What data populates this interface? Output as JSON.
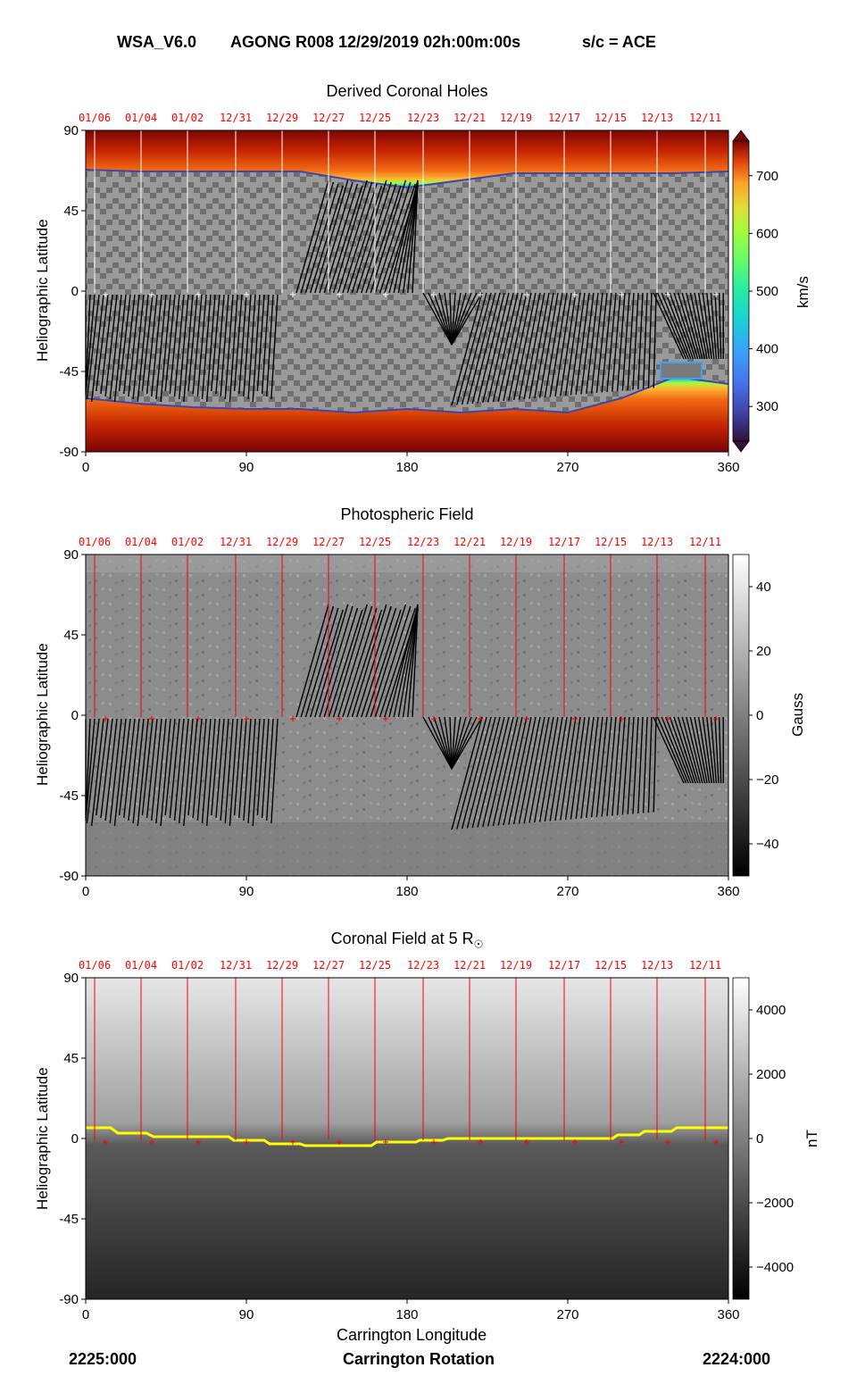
{
  "header": {
    "model": "WSA_V6.0",
    "run": "AGONG R008 12/29/2019 02h:00m:00s",
    "spacecraft": "s/c = ACE"
  },
  "footer": {
    "left": "2225:000",
    "center": "Carrington Rotation",
    "right": "2224:000"
  },
  "date_labels": [
    "01/06",
    "01/04",
    "01/02",
    "12/31",
    "12/29",
    "12/27",
    "12/25",
    "12/23",
    "12/21",
    "12/19",
    "12/17",
    "12/15",
    "12/13",
    "12/11"
  ],
  "chart_data": [
    {
      "type": "heatmap",
      "title": "Derived Coronal Holes",
      "xlabel": "",
      "ylabel": "Heliographic Latitude",
      "xlim": [
        0,
        360
      ],
      "ylim": [
        -90,
        90
      ],
      "xticks": [
        "0",
        "90",
        "180",
        "270",
        "360"
      ],
      "yticks": [
        "90",
        "45",
        "0",
        "-45",
        "-90"
      ],
      "colorbar": {
        "label": "km/s",
        "ticks": [
          "700",
          "600",
          "500",
          "400",
          "300"
        ],
        "range": [
          240,
          760
        ],
        "colormap": "turbo"
      },
      "date_marker_longitudes": [
        5,
        31,
        57,
        84,
        110,
        136,
        162,
        189,
        215,
        241,
        268,
        294,
        320,
        347
      ],
      "boundary_north": [
        [
          0,
          68
        ],
        [
          30,
          67
        ],
        [
          60,
          67
        ],
        [
          90,
          67
        ],
        [
          120,
          67
        ],
        [
          150,
          62
        ],
        [
          180,
          58
        ],
        [
          210,
          62
        ],
        [
          240,
          66
        ],
        [
          270,
          66
        ],
        [
          300,
          66
        ],
        [
          330,
          66
        ],
        [
          360,
          67
        ]
      ],
      "boundary_south": [
        [
          0,
          -60
        ],
        [
          30,
          -63
        ],
        [
          60,
          -65
        ],
        [
          90,
          -66
        ],
        [
          120,
          -66
        ],
        [
          150,
          -68
        ],
        [
          180,
          -66
        ],
        [
          210,
          -68
        ],
        [
          240,
          -66
        ],
        [
          270,
          -68
        ],
        [
          300,
          -60
        ],
        [
          330,
          -48
        ],
        [
          360,
          -52
        ]
      ]
    },
    {
      "type": "heatmap",
      "title": "Photospheric Field",
      "xlabel": "",
      "ylabel": "Heliographic Latitude",
      "xlim": [
        0,
        360
      ],
      "ylim": [
        -90,
        90
      ],
      "xticks": [
        "0",
        "90",
        "180",
        "270",
        "360"
      ],
      "yticks": [
        "90",
        "45",
        "0",
        "-45",
        "-90"
      ],
      "colorbar": {
        "label": "Gauss",
        "ticks": [
          "40",
          "20",
          "0",
          "−20",
          "−40"
        ],
        "range": [
          -50,
          50
        ],
        "colormap": "gray"
      }
    },
    {
      "type": "heatmap",
      "title": "Coronal Field at 5 R",
      "title_symbol": "☉",
      "xlabel": "Carrington Longitude",
      "ylabel": "Heliographic Latitude",
      "xlim": [
        0,
        360
      ],
      "ylim": [
        -90,
        90
      ],
      "xticks": [
        "0",
        "90",
        "180",
        "270",
        "360"
      ],
      "yticks": [
        "90",
        "45",
        "0",
        "-45",
        "-90"
      ],
      "colorbar": {
        "label": "nT",
        "ticks": [
          "4000",
          "2000",
          "0",
          "−2000",
          "−4000"
        ],
        "range": [
          -5000,
          5000
        ],
        "colormap": "gray"
      },
      "neutral_line": [
        [
          0,
          6
        ],
        [
          14,
          6
        ],
        [
          18,
          3
        ],
        [
          34,
          3
        ],
        [
          38,
          1
        ],
        [
          80,
          1
        ],
        [
          83,
          -1
        ],
        [
          100,
          -1
        ],
        [
          103,
          -3
        ],
        [
          120,
          -3
        ],
        [
          123,
          -4
        ],
        [
          160,
          -4
        ],
        [
          163,
          -2
        ],
        [
          185,
          -2
        ],
        [
          187,
          -1
        ],
        [
          200,
          -1
        ],
        [
          203,
          0
        ],
        [
          295,
          0
        ],
        [
          298,
          2
        ],
        [
          310,
          2
        ],
        [
          313,
          4
        ],
        [
          328,
          4
        ],
        [
          331,
          6
        ],
        [
          360,
          6
        ]
      ],
      "neutral_line_color": "#ffff00"
    }
  ],
  "colors": {
    "date_lines": "#ff0000",
    "field_lines": "#000000"
  }
}
